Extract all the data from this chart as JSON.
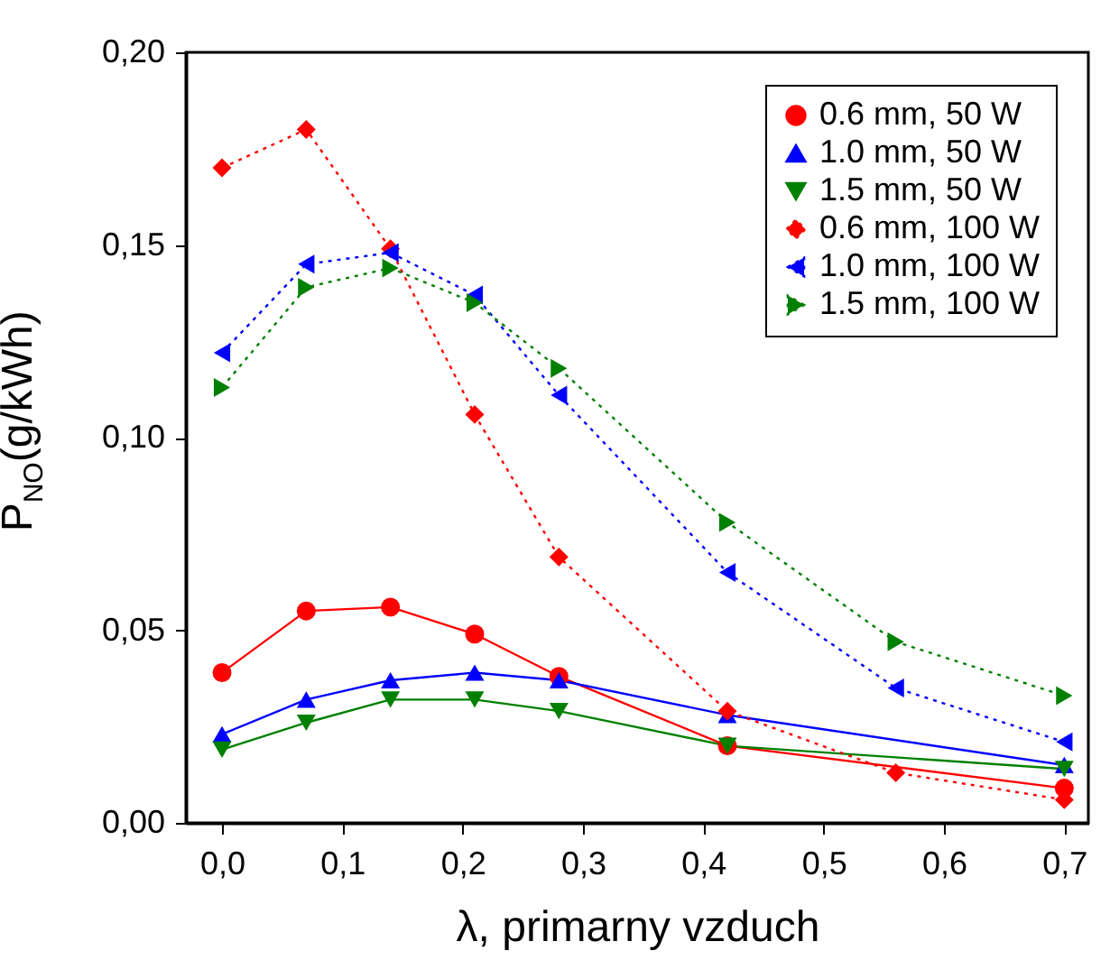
{
  "chart_data": {
    "type": "line",
    "xlabel": "λ,  primarny vzduch",
    "ylabel": "P$_{NO}$(g/kWh)",
    "xlim": [
      -0.03,
      0.72
    ],
    "ylim": [
      0,
      0.2
    ],
    "xticks": [
      {
        "value": 0,
        "label": "0,0"
      },
      {
        "value": 0.1,
        "label": "0,1"
      },
      {
        "value": 0.2,
        "label": "0,2"
      },
      {
        "value": 0.3,
        "label": "0,3"
      },
      {
        "value": 0.4,
        "label": "0,4"
      },
      {
        "value": 0.5,
        "label": "0,5"
      },
      {
        "value": 0.6,
        "label": "0,6"
      },
      {
        "value": 0.7,
        "label": "0,7"
      }
    ],
    "yticks": [
      {
        "value": 0,
        "label": "0,00"
      },
      {
        "value": 0.05,
        "label": "0,05"
      },
      {
        "value": 0.1,
        "label": "0,10"
      },
      {
        "value": 0.15,
        "label": "0,15"
      },
      {
        "value": 0.2,
        "label": "0,20"
      }
    ],
    "legend": "top right",
    "grid": false,
    "series": [
      {
        "name": "0.6 mm, 50 W",
        "color": "#ff0000",
        "marker": "circle",
        "line_style": "solid",
        "x": [
          0,
          0.07,
          0.14,
          0.21,
          0.28,
          0.42,
          0.7
        ],
        "values": [
          0.039,
          0.055,
          0.056,
          0.049,
          0.038,
          0.02,
          0.009
        ]
      },
      {
        "name": "1.0 mm, 50 W",
        "color": "#0000ff",
        "marker": "triangle-up",
        "line_style": "solid",
        "x": [
          0,
          0.07,
          0.14,
          0.21,
          0.28,
          0.42,
          0.7
        ],
        "values": [
          0.023,
          0.032,
          0.037,
          0.039,
          0.037,
          0.028,
          0.015
        ]
      },
      {
        "name": "1.5 mm, 50 W",
        "color": "#008000",
        "marker": "triangle-down",
        "line_style": "solid",
        "x": [
          0,
          0.07,
          0.14,
          0.21,
          0.28,
          0.42,
          0.7
        ],
        "values": [
          0.019,
          0.026,
          0.032,
          0.032,
          0.029,
          0.02,
          0.014
        ]
      },
      {
        "name": "0.6 mm, 100 W",
        "color": "#ff0000",
        "marker": "diamond",
        "line_style": "dotted",
        "x": [
          0,
          0.07,
          0.14,
          0.21,
          0.28,
          0.42,
          0.56,
          0.7
        ],
        "values": [
          0.17,
          0.18,
          0.149,
          0.106,
          0.069,
          0.029,
          0.013,
          0.006
        ]
      },
      {
        "name": "1.0 mm, 100 W",
        "color": "#0000ff",
        "marker": "triangle-left",
        "line_style": "dotted",
        "x": [
          0,
          0.07,
          0.14,
          0.21,
          0.28,
          0.42,
          0.56,
          0.7
        ],
        "values": [
          0.122,
          0.145,
          0.148,
          0.137,
          0.111,
          0.065,
          0.035,
          0.021
        ]
      },
      {
        "name": "1.5 mm, 100 W",
        "color": "#008000",
        "marker": "triangle-right",
        "line_style": "dotted",
        "x": [
          0,
          0.07,
          0.14,
          0.21,
          0.28,
          0.42,
          0.56,
          0.7
        ],
        "values": [
          0.113,
          0.139,
          0.144,
          0.135,
          0.118,
          0.078,
          0.047,
          0.033
        ]
      }
    ]
  }
}
